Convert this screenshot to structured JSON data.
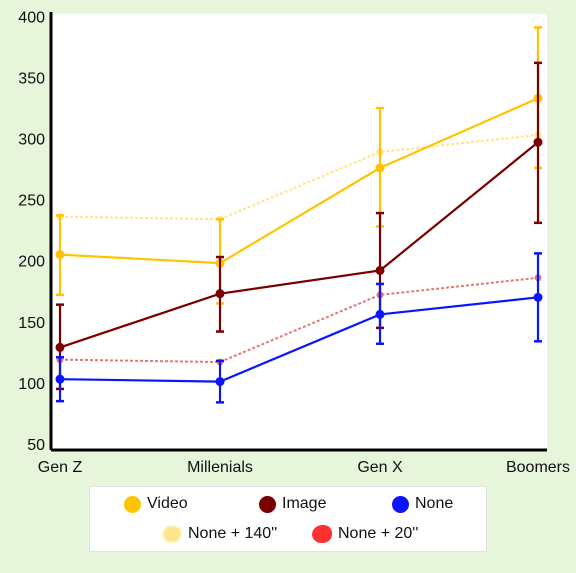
{
  "chart_data": {
    "type": "line",
    "title": "",
    "xlabel": "",
    "ylabel": "",
    "ylim": [
      45,
      402
    ],
    "yticks": [
      50,
      100,
      150,
      200,
      250,
      300,
      350,
      400
    ],
    "categories": [
      "Gen Z",
      "Millenials",
      "Gen X",
      "Boomers"
    ],
    "grid": false,
    "legend_position": "bottom",
    "series": [
      {
        "name": "None + 140''",
        "style": "dotted",
        "color": "#ffe58a",
        "values": [
          236,
          234,
          289,
          303
        ]
      },
      {
        "name": "None + 20''",
        "style": "dotted",
        "color": "#e07a7a",
        "values": [
          119,
          117,
          172,
          186
        ]
      },
      {
        "name": "Video",
        "style": "solid",
        "color": "#ffc400",
        "values": [
          205,
          198,
          276,
          333
        ],
        "err_low": [
          172,
          165,
          228,
          276
        ],
        "err_high": [
          237,
          234,
          325,
          391
        ]
      },
      {
        "name": "Image",
        "style": "solid",
        "color": "#7a0000",
        "values": [
          129,
          173,
          192,
          297
        ],
        "err_low": [
          95,
          142,
          145,
          231
        ],
        "err_high": [
          164,
          203,
          239,
          362
        ]
      },
      {
        "name": "None",
        "style": "solid",
        "color": "#0a14ff",
        "values": [
          103,
          101,
          156,
          170
        ],
        "err_low": [
          85,
          84,
          132,
          134
        ],
        "err_high": [
          121,
          118,
          181,
          206
        ]
      }
    ]
  },
  "legend": [
    {
      "label": "Video",
      "color": "#ffc400",
      "shape": "circle"
    },
    {
      "label": "Image",
      "color": "#7a0000",
      "shape": "circle"
    },
    {
      "label": "None",
      "color": "#0a14ff",
      "shape": "circle"
    },
    {
      "label": "None + 140''",
      "color": "#ffe58a",
      "shape": "blob"
    },
    {
      "label": "None + 20''",
      "color": "#ff3030",
      "shape": "blob"
    }
  ]
}
